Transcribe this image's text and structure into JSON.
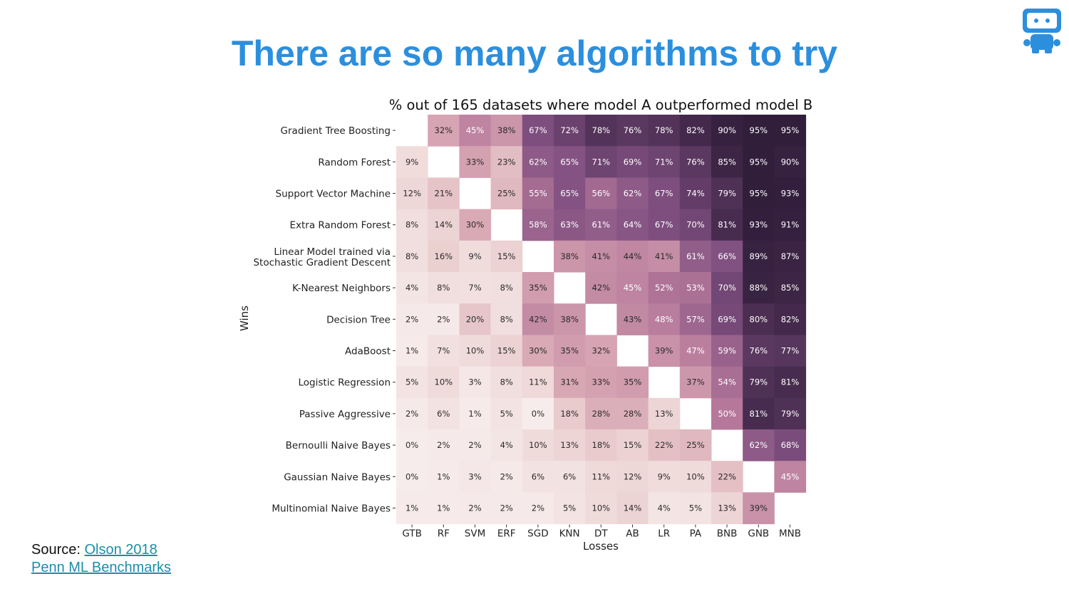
{
  "title": "There are so many algorithms to try",
  "source": {
    "prefix": "Source: ",
    "link1": "Olson 2018",
    "link2": "Penn ML Benchmarks"
  },
  "logo": {
    "icon": "robot-icon",
    "color": "#2b8fde"
  },
  "chart_data": {
    "type": "heatmap",
    "title": "% out of 165 datasets where model A outperformed model B",
    "xlabel": "Losses",
    "ylabel": "Wins",
    "rows": [
      [
        "Gradient Tree Boosting"
      ],
      [
        "Random Forest"
      ],
      [
        "Support Vector Machine"
      ],
      [
        "Extra Random Forest"
      ],
      [
        "Linear Model trained via",
        "Stochastic Gradient Descent"
      ],
      [
        "K-Nearest Neighbors"
      ],
      [
        "Decision Tree"
      ],
      [
        "AdaBoost"
      ],
      [
        "Logistic Regression"
      ],
      [
        "Passive Aggressive"
      ],
      [
        "Bernoulli Naive Bayes"
      ],
      [
        "Gaussian Naive Bayes"
      ],
      [
        "Multinomial Naive Bayes"
      ]
    ],
    "columns": [
      "GTB",
      "RF",
      "SVM",
      "ERF",
      "SGD",
      "KNN",
      "DT",
      "AB",
      "LR",
      "PA",
      "BNB",
      "GNB",
      "MNB"
    ],
    "values": [
      [
        null,
        32,
        45,
        38,
        67,
        72,
        78,
        76,
        78,
        82,
        90,
        95,
        95
      ],
      [
        9,
        null,
        33,
        23,
        62,
        65,
        71,
        69,
        71,
        76,
        85,
        95,
        90
      ],
      [
        12,
        21,
        null,
        25,
        55,
        65,
        56,
        62,
        67,
        74,
        79,
        95,
        93
      ],
      [
        8,
        14,
        30,
        null,
        58,
        63,
        61,
        64,
        67,
        70,
        81,
        93,
        91
      ],
      [
        8,
        16,
        9,
        15,
        null,
        38,
        41,
        44,
        41,
        61,
        66,
        89,
        87
      ],
      [
        4,
        8,
        7,
        8,
        35,
        null,
        42,
        45,
        52,
        53,
        70,
        88,
        85
      ],
      [
        2,
        2,
        20,
        8,
        42,
        38,
        null,
        43,
        48,
        57,
        69,
        80,
        82
      ],
      [
        1,
        7,
        10,
        15,
        30,
        35,
        32,
        null,
        39,
        47,
        59,
        76,
        77
      ],
      [
        5,
        10,
        3,
        8,
        11,
        31,
        33,
        35,
        null,
        37,
        54,
        79,
        81
      ],
      [
        2,
        6,
        1,
        5,
        0,
        18,
        28,
        28,
        13,
        null,
        50,
        81,
        79
      ],
      [
        0,
        2,
        2,
        4,
        10,
        13,
        18,
        15,
        22,
        25,
        null,
        62,
        68
      ],
      [
        0,
        1,
        3,
        2,
        6,
        6,
        11,
        12,
        9,
        10,
        22,
        null,
        45
      ],
      [
        1,
        1,
        2,
        2,
        2,
        5,
        10,
        14,
        4,
        5,
        13,
        39,
        null
      ]
    ],
    "value_suffix": "%",
    "colormap": [
      "#f7ecec",
      "#ebcfcf",
      "#d4a0b0",
      "#b5789a",
      "#7f4f80",
      "#3f2647",
      "#2b1a35"
    ]
  }
}
